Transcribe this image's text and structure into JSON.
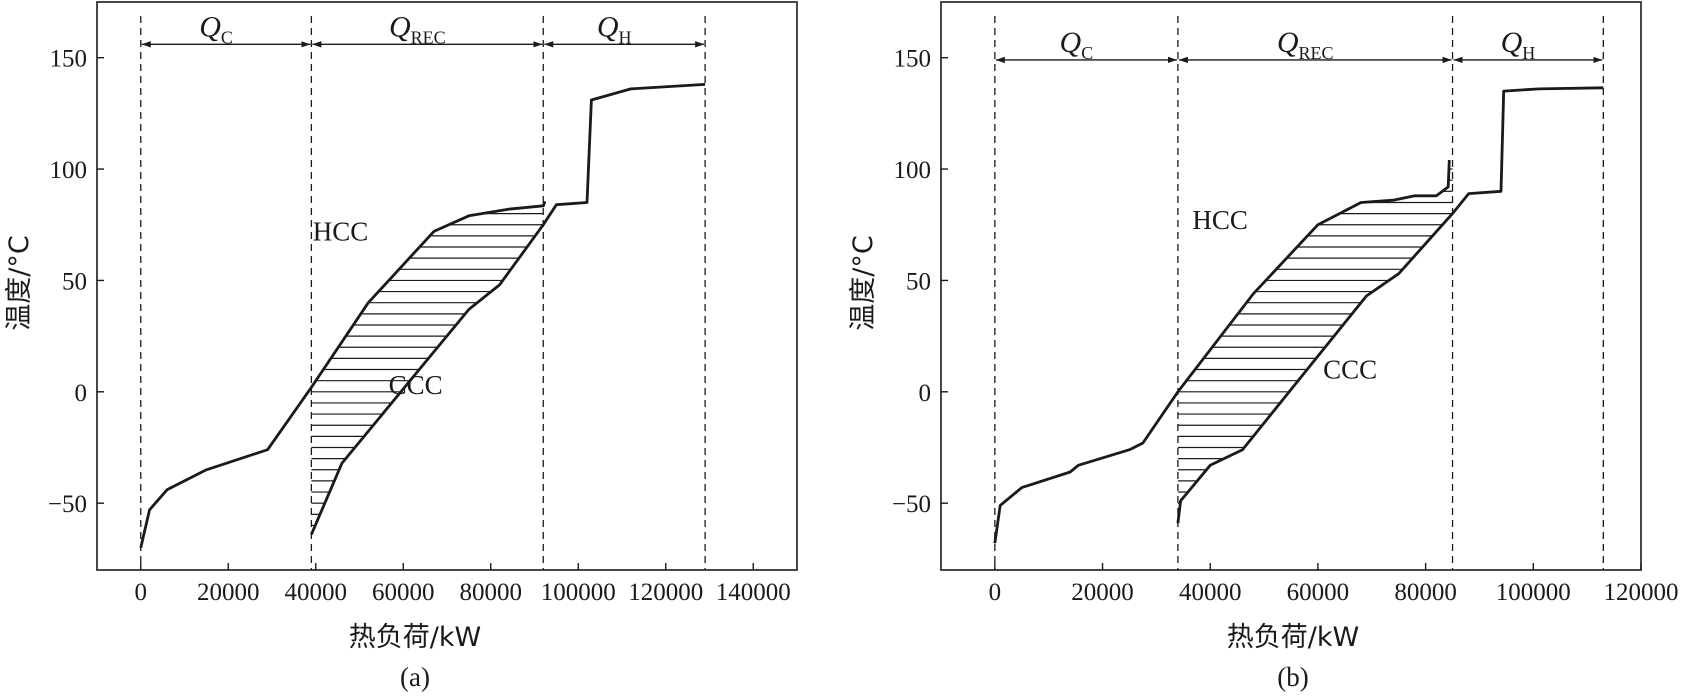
{
  "chart_data": [
    {
      "type": "line",
      "caption": "(a)",
      "xlabel": "热负荷/kW",
      "ylabel": "温度/°C",
      "xlim": [
        -10000,
        150000
      ],
      "ylim": [
        -80,
        175
      ],
      "xticks": [
        0,
        20000,
        40000,
        60000,
        80000,
        100000,
        120000,
        140000
      ],
      "yticks": [
        -50,
        0,
        50,
        100,
        150
      ],
      "xtick_labels": [
        "0",
        "20000",
        "40000",
        "60000",
        "80000",
        "100000",
        "120000",
        "140000"
      ],
      "ytick_labels": [
        "−50",
        "0",
        "50",
        "100",
        "150"
      ],
      "grid": false,
      "series": [
        {
          "name": "HCC",
          "x": [
            0,
            2000,
            6000,
            15000,
            29000,
            39000,
            52000,
            67000,
            75000,
            84000,
            92000,
            92300,
            92000
          ],
          "y": [
            -70,
            -53,
            -44,
            -35,
            -26,
            2,
            40,
            72,
            79,
            82,
            83.5,
            85,
            85
          ]
        },
        {
          "name": "CCC",
          "x": [
            39000,
            46000,
            75000,
            82000,
            92000,
            95000,
            102000,
            103000,
            112000,
            129000
          ],
          "y": [
            -64,
            -32,
            37,
            48,
            75,
            84,
            85,
            131,
            136,
            138
          ]
        }
      ],
      "regions": [
        {
          "label": "Q",
          "sub": "C",
          "from": 0,
          "to": 39000
        },
        {
          "label": "Q",
          "sub": "REC",
          "from": 39000,
          "to": 92000
        },
        {
          "label": "Q",
          "sub": "H",
          "from": 92000,
          "to": 129000
        }
      ],
      "region_arrow_y": 156,
      "label_positions": {
        "HCC": [
          52000,
          68
        ],
        "CCC": [
          69000,
          -1
        ]
      }
    },
    {
      "type": "line",
      "caption": "(b)",
      "xlabel": "热负荷/kW",
      "ylabel": "温度/°C",
      "xlim": [
        -10000,
        120000
      ],
      "ylim": [
        -80,
        175
      ],
      "xticks": [
        0,
        20000,
        40000,
        60000,
        80000,
        100000,
        120000
      ],
      "yticks": [
        -50,
        0,
        50,
        100,
        150
      ],
      "xtick_labels": [
        "0",
        "20000",
        "40000",
        "60000",
        "80000",
        "100000",
        "120000"
      ],
      "ytick_labels": [
        "−50",
        "0",
        "50",
        "100",
        "150"
      ],
      "grid": false,
      "series": [
        {
          "name": "HCC",
          "x": [
            0,
            1000,
            5000,
            14000,
            15500,
            25000,
            27500,
            34000,
            48000,
            60000,
            68000,
            74000,
            78000,
            82000,
            84200,
            84400
          ],
          "y": [
            -68,
            -51,
            -43,
            -36,
            -33,
            -26,
            -23,
            0,
            44,
            75,
            85,
            86,
            88,
            88,
            92,
            104
          ]
        },
        {
          "name": "CCC",
          "x": [
            34000,
            34500,
            40000,
            46000,
            69000,
            75000,
            85000,
            88000,
            94000,
            94500,
            101000,
            113000
          ],
          "y": [
            -59,
            -49,
            -33,
            -26,
            43,
            53,
            80,
            89,
            90,
            135,
            136,
            136.5
          ]
        }
      ],
      "regions": [
        {
          "label": "Q",
          "sub": "C",
          "from": 0,
          "to": 34000
        },
        {
          "label": "Q",
          "sub": "REC",
          "from": 34000,
          "to": 85000
        },
        {
          "label": "Q",
          "sub": "H",
          "from": 85000,
          "to": 113000
        }
      ],
      "region_arrow_y": 149,
      "label_positions": {
        "HCC": [
          47000,
          73
        ],
        "CCC": [
          71000,
          6
        ]
      }
    }
  ]
}
